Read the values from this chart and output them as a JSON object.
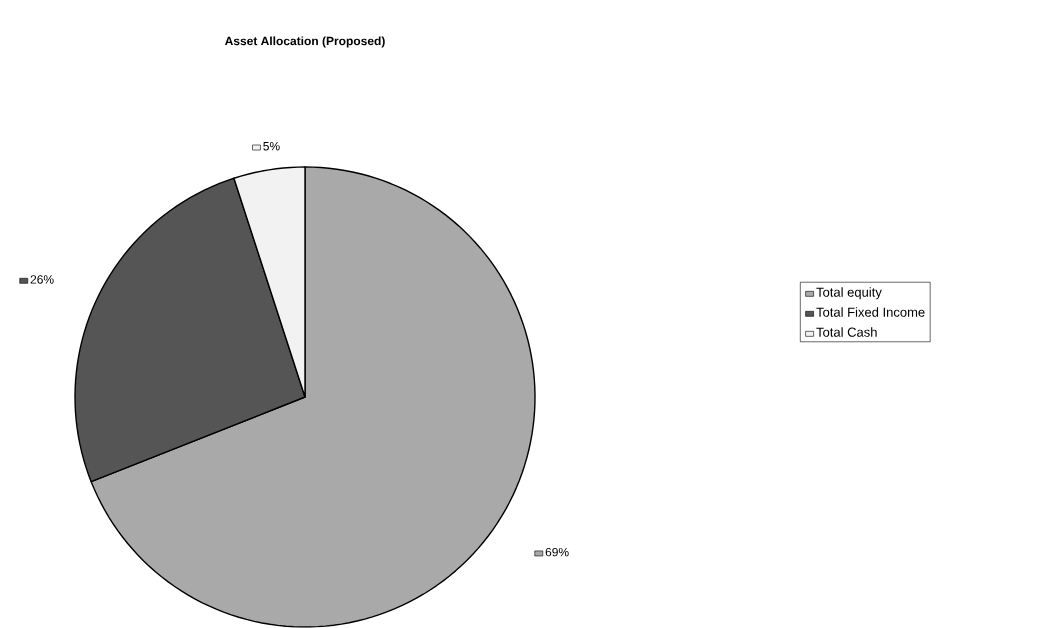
{
  "chart_data": {
    "type": "pie",
    "title": "Asset Allocation (Proposed)",
    "categories": [
      "Total equity",
      "Total Fixed Income",
      "Total Cash"
    ],
    "values": [
      69,
      26,
      5
    ],
    "value_labels": [
      "69%",
      "26%",
      "5%"
    ],
    "colors": [
      "#a9a9a9",
      "#555555",
      "#f2f2f2"
    ],
    "legend": "right"
  }
}
